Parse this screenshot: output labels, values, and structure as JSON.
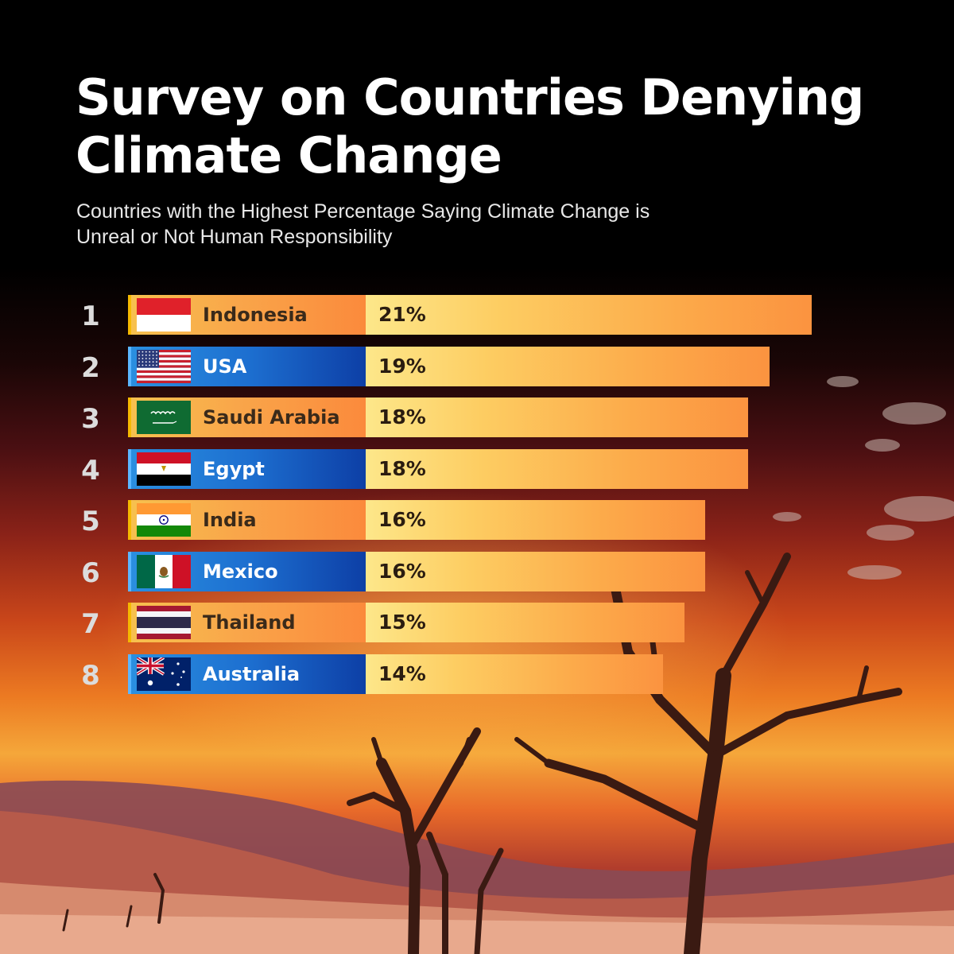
{
  "title": "Survey on Countries Denying Climate Change",
  "subtitle": "Countries with the Highest Percentage Saying Climate Change is Unreal or Not Human Responsibility",
  "colors": {
    "alt_row_orange": "#f9a64a",
    "alt_row_blue": "#1d6fd0",
    "bar": "#fcbf58"
  },
  "chart_data": {
    "type": "bar",
    "orientation": "horizontal",
    "title": "Survey on Countries Denying Climate Change",
    "subtitle": "Countries with the Highest Percentage Saying Climate Change is Unreal or Not Human Responsibility",
    "ranks": [
      "1",
      "2",
      "3",
      "4",
      "5",
      "6",
      "7",
      "8"
    ],
    "categories": [
      "Indonesia",
      "USA",
      "Saudi Arabia",
      "Egypt",
      "India",
      "Mexico",
      "Thailand",
      "Australia"
    ],
    "values": [
      21,
      19,
      18,
      18,
      16,
      16,
      15,
      14
    ],
    "value_labels": [
      "21%",
      "19%",
      "18%",
      "18%",
      "16%",
      "16%",
      "15%",
      "14%"
    ],
    "flags": [
      "indonesia-flag-icon",
      "usa-flag-icon",
      "saudi-arabia-flag-icon",
      "egypt-flag-icon",
      "india-flag-icon",
      "mexico-flag-icon",
      "thailand-flag-icon",
      "australia-flag-icon"
    ],
    "unit": "%",
    "grid": false,
    "legend": "none"
  }
}
